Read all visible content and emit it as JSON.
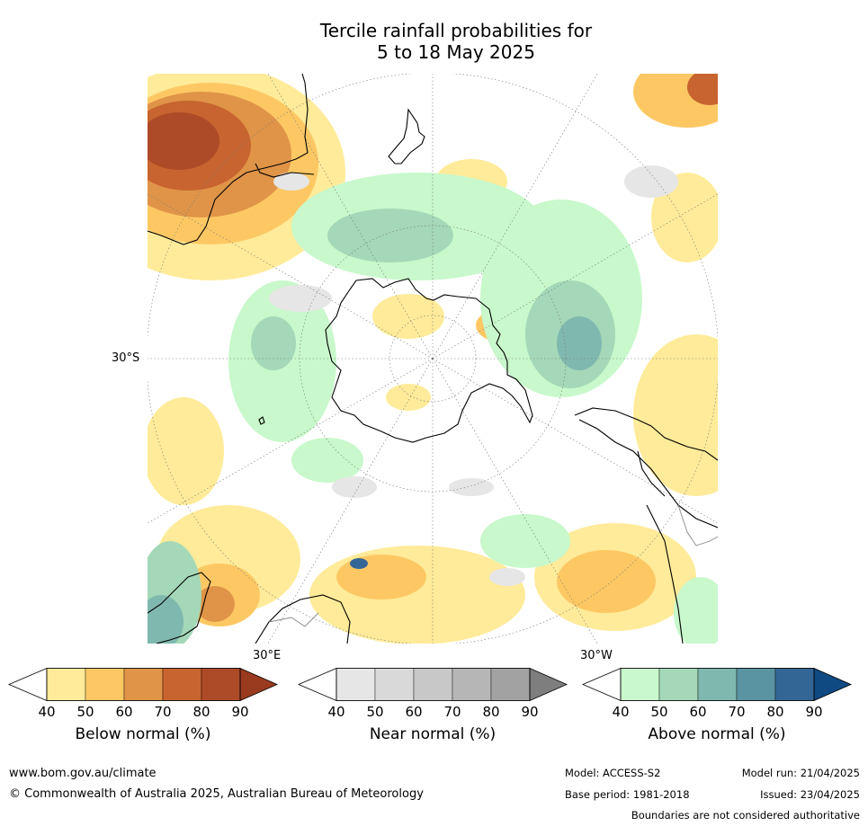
{
  "title_line1": "Tercile rainfall probabilities for",
  "title_line2": "5 to 18 May 2025",
  "map": {
    "projection": "south-polar-stereographic",
    "lat_labels": [
      "30°S"
    ],
    "lon_labels": [
      "30°E",
      "30°W"
    ]
  },
  "colorbars": [
    {
      "label": "Below normal (%)",
      "ticks": [
        "40",
        "50",
        "60",
        "70",
        "80",
        "90"
      ],
      "colors": [
        "#ffffff",
        "#ffeb99",
        "#fdc864",
        "#e09448",
        "#c8642f",
        "#ad4a27",
        "#9a3a1e"
      ]
    },
    {
      "label": "Near normal (%)",
      "ticks": [
        "40",
        "50",
        "60",
        "70",
        "80",
        "90"
      ],
      "colors": [
        "#ffffff",
        "#e6e6e6",
        "#d9d9d9",
        "#c8c8c8",
        "#b6b6b6",
        "#a2a2a2",
        "#7e7e7e"
      ]
    },
    {
      "label": "Above normal (%)",
      "ticks": [
        "40",
        "50",
        "60",
        "70",
        "80",
        "90"
      ],
      "colors": [
        "#ffffff",
        "#c8f8cb",
        "#a4d8b8",
        "#7fb8ae",
        "#5a93a2",
        "#336695",
        "#0f4a82"
      ]
    }
  ],
  "footer": {
    "website": "www.bom.gov.au/climate",
    "copyright": "© Commonwealth of Australia 2025, Australian Bureau of Meteorology",
    "model": "Model: ACCESS-S2",
    "base_period": "Base period: 1981-2018",
    "model_run": "Model run: 21/04/2025",
    "issued": "Issued: 23/04/2025",
    "disclaimer": "Boundaries are not considered authoritative"
  }
}
